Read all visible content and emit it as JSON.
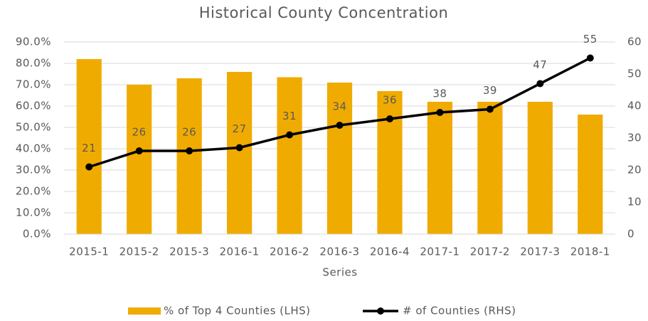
{
  "chart_data": {
    "type": "combo",
    "title": "Historical County Concentration",
    "x_label": "Series",
    "categories": [
      "2015-1",
      "2015-2",
      "2015-3",
      "2016-1",
      "2016-2",
      "2016-3",
      "2016-4",
      "2017-1",
      "2017-2",
      "2017-3",
      "2018-1"
    ],
    "series": [
      {
        "name": "% of Top 4 Counties (LHS)",
        "type": "bar",
        "color": "#f0ab00",
        "values": [
          82,
          70,
          73,
          76,
          73.5,
          71,
          67,
          62,
          62,
          62,
          56
        ]
      },
      {
        "name": "# of Counties (RHS)",
        "type": "line",
        "axis": "y2",
        "color": "#000000",
        "values": [
          21,
          26,
          26,
          27,
          31,
          34,
          36,
          38,
          39,
          47,
          55
        ]
      }
    ],
    "ylim": [
      0,
      90
    ],
    "yticks": [
      {
        "value": 0,
        "label": "0.0%"
      },
      {
        "value": 10,
        "label": "10.0%"
      },
      {
        "value": 20,
        "label": "20.0%"
      },
      {
        "value": 30,
        "label": "30.0%"
      },
      {
        "value": 40,
        "label": "40.0%"
      },
      {
        "value": 50,
        "label": "50.0%"
      },
      {
        "value": 60,
        "label": "60.0%"
      },
      {
        "value": 70,
        "label": "70.0%"
      },
      {
        "value": 80,
        "label": "80.0%"
      },
      {
        "value": 90,
        "label": "90.0%"
      }
    ],
    "y2lim": [
      0,
      60
    ],
    "y2ticks": [
      0,
      10,
      20,
      30,
      40,
      50,
      60
    ],
    "grid": true,
    "legend": "bottom"
  }
}
